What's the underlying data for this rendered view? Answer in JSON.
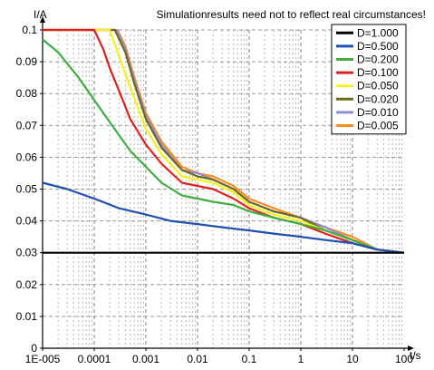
{
  "chart_data": {
    "type": "line",
    "title": "Simulationresults need not to reflect real circumstances!",
    "ylabel": "I/A",
    "xlabel": "t/s",
    "x_scale": "log",
    "xlim": [
      1e-05,
      100
    ],
    "ylim": [
      0,
      0.1
    ],
    "x_ticks": [
      "1E-005",
      "0.0001",
      "0.001",
      "0.01",
      "0.1",
      "1",
      "10",
      "100"
    ],
    "y_ticks": [
      "0",
      "0.01",
      "0.02",
      "0.03",
      "0.04",
      "0.05",
      "0.06",
      "0.07",
      "0.08",
      "0.09",
      "0.1"
    ],
    "grid": true,
    "legend_position": "top-right",
    "series": [
      {
        "name": "D=1.000",
        "color": "#000000",
        "x": [
          1e-05,
          100
        ],
        "y": [
          0.03,
          0.03
        ]
      },
      {
        "name": "D=0.500",
        "color": "#1f4fb0",
        "x": [
          1e-05,
          3e-05,
          0.0001,
          0.0003,
          0.001,
          0.003,
          0.01,
          0.03,
          0.1,
          0.3,
          1,
          3,
          10,
          30,
          100
        ],
        "y": [
          0.052,
          0.05,
          0.047,
          0.044,
          0.042,
          0.04,
          0.039,
          0.038,
          0.037,
          0.036,
          0.035,
          0.034,
          0.033,
          0.031,
          0.03
        ]
      },
      {
        "name": "D=0.200",
        "color": "#3fae3f",
        "x": [
          1e-05,
          2e-05,
          5e-05,
          0.0001,
          0.0002,
          0.0005,
          0.001,
          0.002,
          0.005,
          0.01,
          0.02,
          0.05,
          0.1,
          0.3,
          1,
          3,
          10,
          30,
          100
        ],
        "y": [
          0.097,
          0.093,
          0.085,
          0.078,
          0.071,
          0.062,
          0.057,
          0.052,
          0.048,
          0.047,
          0.046,
          0.045,
          0.043,
          0.041,
          0.039,
          0.037,
          0.034,
          0.031,
          0.03
        ]
      },
      {
        "name": "D=0.100",
        "color": "#e02020",
        "x": [
          1e-05,
          0.0001,
          0.00015,
          0.0002,
          0.0003,
          0.0005,
          0.001,
          0.002,
          0.005,
          0.01,
          0.02,
          0.05,
          0.1,
          0.3,
          1,
          3,
          10,
          30,
          100
        ],
        "y": [
          0.1,
          0.1,
          0.094,
          0.088,
          0.081,
          0.072,
          0.064,
          0.058,
          0.052,
          0.051,
          0.05,
          0.047,
          0.044,
          0.041,
          0.039,
          0.036,
          0.033,
          0.031,
          0.03
        ]
      },
      {
        "name": "D=0.050",
        "color": "#f5f01e",
        "x": [
          1e-05,
          0.0002,
          0.0003,
          0.0005,
          0.001,
          0.002,
          0.005,
          0.01,
          0.02,
          0.05,
          0.1,
          0.3,
          1,
          3,
          10,
          30,
          100
        ],
        "y": [
          0.1,
          0.1,
          0.092,
          0.082,
          0.069,
          0.061,
          0.054,
          0.053,
          0.052,
          0.049,
          0.045,
          0.042,
          0.04,
          0.037,
          0.034,
          0.031,
          0.03
        ]
      },
      {
        "name": "D=0.020",
        "color": "#6b6b1e",
        "x": [
          1e-05,
          0.00025,
          0.0004,
          0.0006,
          0.001,
          0.002,
          0.005,
          0.01,
          0.02,
          0.05,
          0.1,
          0.3,
          1,
          3,
          10,
          30,
          100
        ],
        "y": [
          0.1,
          0.1,
          0.093,
          0.083,
          0.072,
          0.063,
          0.056,
          0.054,
          0.053,
          0.05,
          0.046,
          0.043,
          0.041,
          0.037,
          0.034,
          0.031,
          0.03
        ]
      },
      {
        "name": "D=0.010",
        "color": "#8f8fd6",
        "x": [
          1e-05,
          0.00027,
          0.0004,
          0.0006,
          0.001,
          0.002,
          0.005,
          0.01,
          0.02,
          0.05,
          0.1,
          0.3,
          1,
          3,
          10,
          30,
          100
        ],
        "y": [
          0.1,
          0.1,
          0.094,
          0.084,
          0.073,
          0.064,
          0.056,
          0.055,
          0.053,
          0.05,
          0.046,
          0.043,
          0.041,
          0.038,
          0.034,
          0.031,
          0.03
        ]
      },
      {
        "name": "D=0.005",
        "color": "#ff8a1e",
        "x": [
          1e-05,
          0.00028,
          0.0004,
          0.0006,
          0.001,
          0.002,
          0.005,
          0.01,
          0.02,
          0.05,
          0.1,
          0.3,
          1,
          3,
          10,
          30,
          100
        ],
        "y": [
          0.1,
          0.1,
          0.095,
          0.085,
          0.074,
          0.065,
          0.057,
          0.055,
          0.054,
          0.051,
          0.047,
          0.044,
          0.041,
          0.038,
          0.035,
          0.031,
          0.03
        ]
      }
    ]
  }
}
